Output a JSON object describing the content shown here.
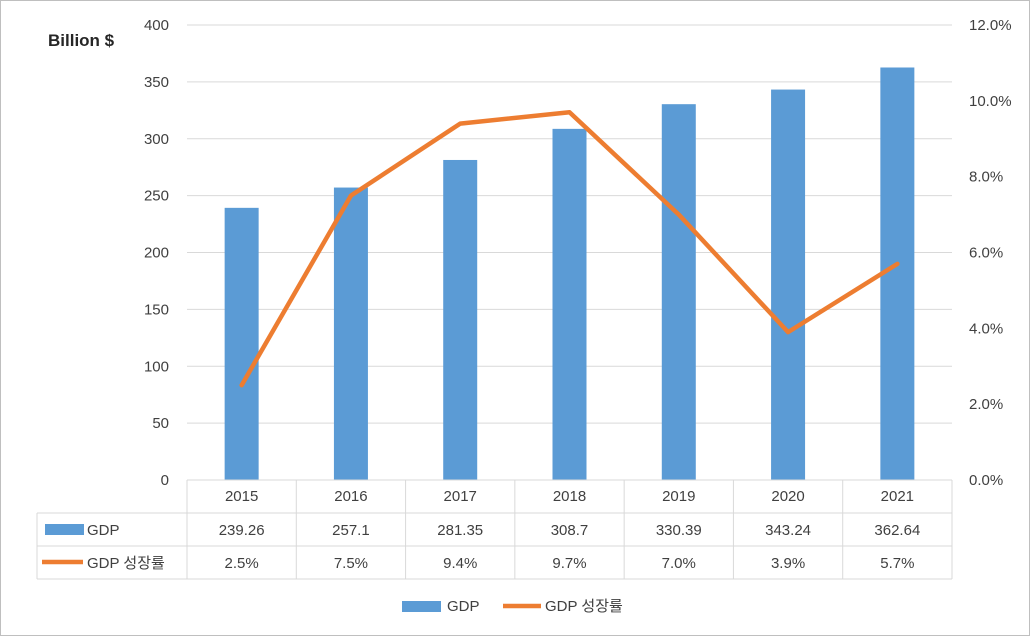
{
  "chart_data": {
    "type": "bar",
    "categories": [
      "2015",
      "2016",
      "2017",
      "2018",
      "2019",
      "2020",
      "2021"
    ],
    "series": [
      {
        "name": "GDP",
        "kind": "bar",
        "axis": "left",
        "color": "#5B9BD5",
        "values": [
          239.26,
          257.1,
          281.35,
          308.7,
          330.39,
          343.24,
          362.64
        ],
        "labels": [
          "239.26",
          "257.1",
          "281.35",
          "308.7",
          "330.39",
          "343.24",
          "362.64"
        ]
      },
      {
        "name": "GDP 성장률",
        "kind": "line",
        "axis": "right",
        "color": "#ED7D31",
        "values": [
          2.5,
          7.5,
          9.4,
          9.7,
          7.0,
          3.9,
          5.7
        ],
        "labels": [
          "2.5%",
          "7.5%",
          "9.4%",
          "9.7%",
          "7.0%",
          "3.9%",
          "5.7%"
        ]
      }
    ],
    "ylabel": "Billion $",
    "ylim": [
      0,
      400
    ],
    "yticks": [
      "0",
      "50",
      "100",
      "150",
      "200",
      "250",
      "300",
      "350",
      "400"
    ],
    "y2lim": [
      0,
      12
    ],
    "y2ticks": [
      "0.0%",
      "2.0%",
      "4.0%",
      "6.0%",
      "8.0%",
      "10.0%",
      "12.0%"
    ],
    "grid": true,
    "data_table": true,
    "legend": "bottom",
    "gridline_color": "#d9d9d9"
  }
}
